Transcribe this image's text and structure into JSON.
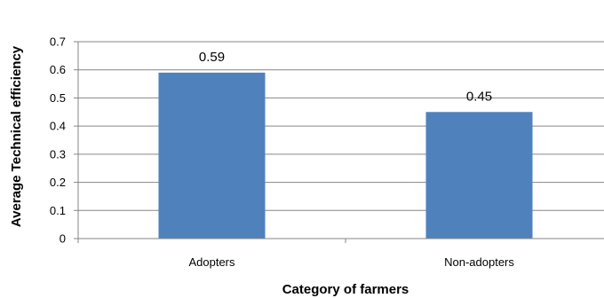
{
  "chart_data": {
    "type": "bar",
    "categories": [
      "Adopters",
      "Non-adopters"
    ],
    "values": [
      0.59,
      0.45
    ],
    "data_labels": [
      "0.59",
      "0.45"
    ],
    "xlabel": "Category of farmers",
    "ylabel": "Average Technical efficiency",
    "ylim": [
      0,
      0.7
    ],
    "yticks": [
      "0",
      "0.1",
      "0.2",
      "0.3",
      "0.4",
      "0.5",
      "0.6",
      "0.7"
    ],
    "grid": true,
    "bar_color": "#4f81bd",
    "grid_color": "#868686"
  }
}
